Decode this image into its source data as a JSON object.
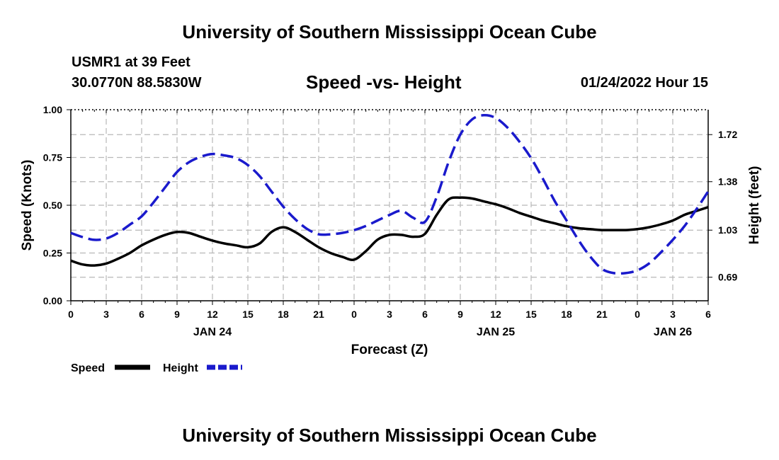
{
  "header": {
    "top_title": "University of Southern Mississippi Ocean Cube",
    "station_line": "USMR1 at 39 Feet",
    "coords_line": "30.0770N  88.5830W",
    "datetime": "01/24/2022 Hour 15",
    "bottom_title": "University of Southern Mississippi Ocean Cube"
  },
  "legend": {
    "speed_label": "Speed",
    "height_label": "Height"
  },
  "colors": {
    "speed": "#000000",
    "height": "#1a1acc",
    "grid": "#b8b8b8"
  },
  "chart_data": {
    "type": "line",
    "title": "Speed -vs- Height",
    "xlabel": "Forecast (Z)",
    "ylabel": "Speed (Knots)",
    "y2label": "Height (feet)",
    "ylim": [
      0,
      1
    ],
    "y2lim": [
      0.52,
      1.9
    ],
    "xlim": [
      0,
      54
    ],
    "x_tick_labels": [
      "0",
      "3",
      "6",
      "9",
      "12",
      "15",
      "18",
      "21",
      "0",
      "3",
      "6",
      "9",
      "12",
      "15",
      "18",
      "21",
      "0",
      "3",
      "6"
    ],
    "date_labels": [
      {
        "label": "JAN 24",
        "hour": 12
      },
      {
        "label": "JAN 25",
        "hour": 36
      },
      {
        "label": "JAN 26",
        "hour": 51
      }
    ],
    "y_ticks": [
      {
        "value": 0,
        "label": "0.00"
      },
      {
        "value": 0.25,
        "label": "0.25"
      },
      {
        "value": 0.5,
        "label": "0.50"
      },
      {
        "value": 0.75,
        "label": "0.75"
      },
      {
        "value": 1,
        "label": "1.00"
      }
    ],
    "y2_ticks": [
      {
        "value": 0.69,
        "label": "0.69"
      },
      {
        "value": 1.03,
        "label": "1.03"
      },
      {
        "value": 1.38,
        "label": "1.38"
      },
      {
        "value": 1.72,
        "label": "1.72"
      }
    ],
    "series": [
      {
        "name": "Speed",
        "axis": "left",
        "style": "solid",
        "x": [
          0,
          1,
          2,
          3,
          4,
          5,
          6,
          7,
          8,
          9,
          10,
          11,
          12,
          13,
          14,
          15,
          16,
          17,
          18,
          19,
          20,
          21,
          22,
          23,
          24,
          25,
          26,
          27,
          28,
          29,
          30,
          31,
          32,
          33,
          34,
          35,
          36,
          37,
          38,
          39,
          40,
          41,
          42,
          43,
          44,
          45,
          46,
          47,
          48,
          49,
          50,
          51,
          52,
          53,
          54
        ],
        "values": [
          0.21,
          0.19,
          0.185,
          0.195,
          0.22,
          0.25,
          0.29,
          0.32,
          0.345,
          0.36,
          0.355,
          0.335,
          0.315,
          0.3,
          0.29,
          0.28,
          0.3,
          0.36,
          0.385,
          0.36,
          0.32,
          0.28,
          0.25,
          0.23,
          0.215,
          0.26,
          0.32,
          0.345,
          0.345,
          0.335,
          0.35,
          0.45,
          0.53,
          0.54,
          0.535,
          0.52,
          0.505,
          0.485,
          0.46,
          0.44,
          0.42,
          0.405,
          0.39,
          0.38,
          0.375,
          0.37,
          0.37,
          0.37,
          0.375,
          0.385,
          0.4,
          0.42,
          0.45,
          0.47,
          0.49
        ]
      },
      {
        "name": "Height",
        "axis": "right",
        "style": "dashed",
        "x": [
          0,
          1,
          2,
          3,
          4,
          5,
          6,
          7,
          8,
          9,
          10,
          11,
          12,
          13,
          14,
          15,
          16,
          17,
          18,
          19,
          20,
          21,
          22,
          23,
          24,
          25,
          26,
          27,
          28,
          29,
          30,
          31,
          32,
          33,
          34,
          35,
          36,
          37,
          38,
          39,
          40,
          41,
          42,
          43,
          44,
          45,
          46,
          47,
          48,
          49,
          50,
          51,
          52,
          53,
          54
        ],
        "values": [
          1.01,
          0.98,
          0.96,
          0.97,
          1.01,
          1.07,
          1.13,
          1.23,
          1.34,
          1.45,
          1.52,
          1.56,
          1.58,
          1.57,
          1.55,
          1.5,
          1.42,
          1.31,
          1.2,
          1.11,
          1.04,
          1.0,
          1.0,
          1.01,
          1.03,
          1.06,
          1.1,
          1.14,
          1.17,
          1.12,
          1.09,
          1.27,
          1.52,
          1.72,
          1.83,
          1.86,
          1.84,
          1.77,
          1.67,
          1.55,
          1.4,
          1.24,
          1.1,
          0.96,
          0.84,
          0.75,
          0.72,
          0.72,
          0.74,
          0.79,
          0.87,
          0.96,
          1.06,
          1.18,
          1.31
        ]
      }
    ]
  }
}
